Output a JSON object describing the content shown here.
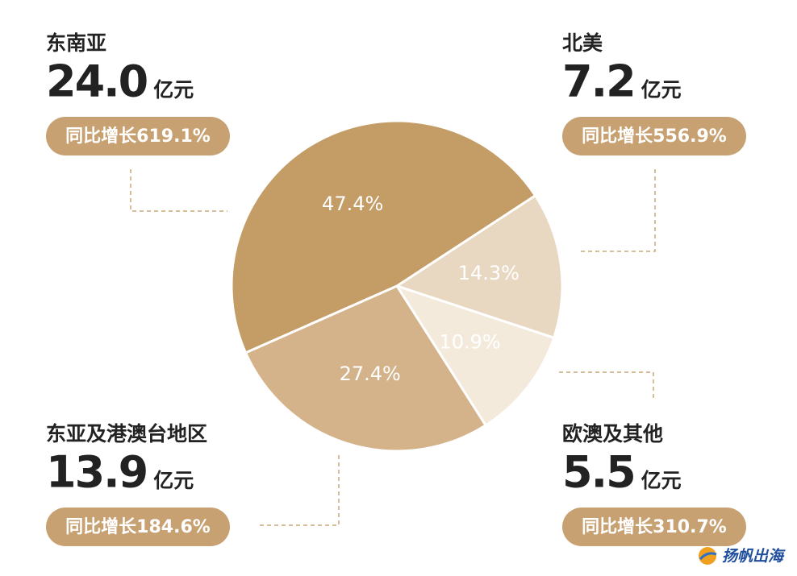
{
  "chart_data": {
    "type": "pie",
    "categories": [
      "北美",
      "欧澳及其他",
      "东亚及港澳台地区",
      "东南亚"
    ],
    "values": [
      14.3,
      10.9,
      27.4,
      47.4
    ],
    "value_labels": [
      "14.3%",
      "10.9%",
      "27.4%",
      "47.4%"
    ],
    "colors": [
      "#e9d8c1",
      "#f4eadc",
      "#d4b38b",
      "#c49c66"
    ],
    "amounts": [
      7.2,
      5.5,
      13.9,
      24.0
    ],
    "amount_labels": [
      "7.2",
      "5.5",
      "13.9",
      "24.0"
    ],
    "unit": "亿元",
    "growth_labels": [
      "同比增长556.9%",
      "同比增长310.7%",
      "同比增长184.6%",
      "同比增长619.1%"
    ]
  },
  "watermark": "扬帆出海"
}
